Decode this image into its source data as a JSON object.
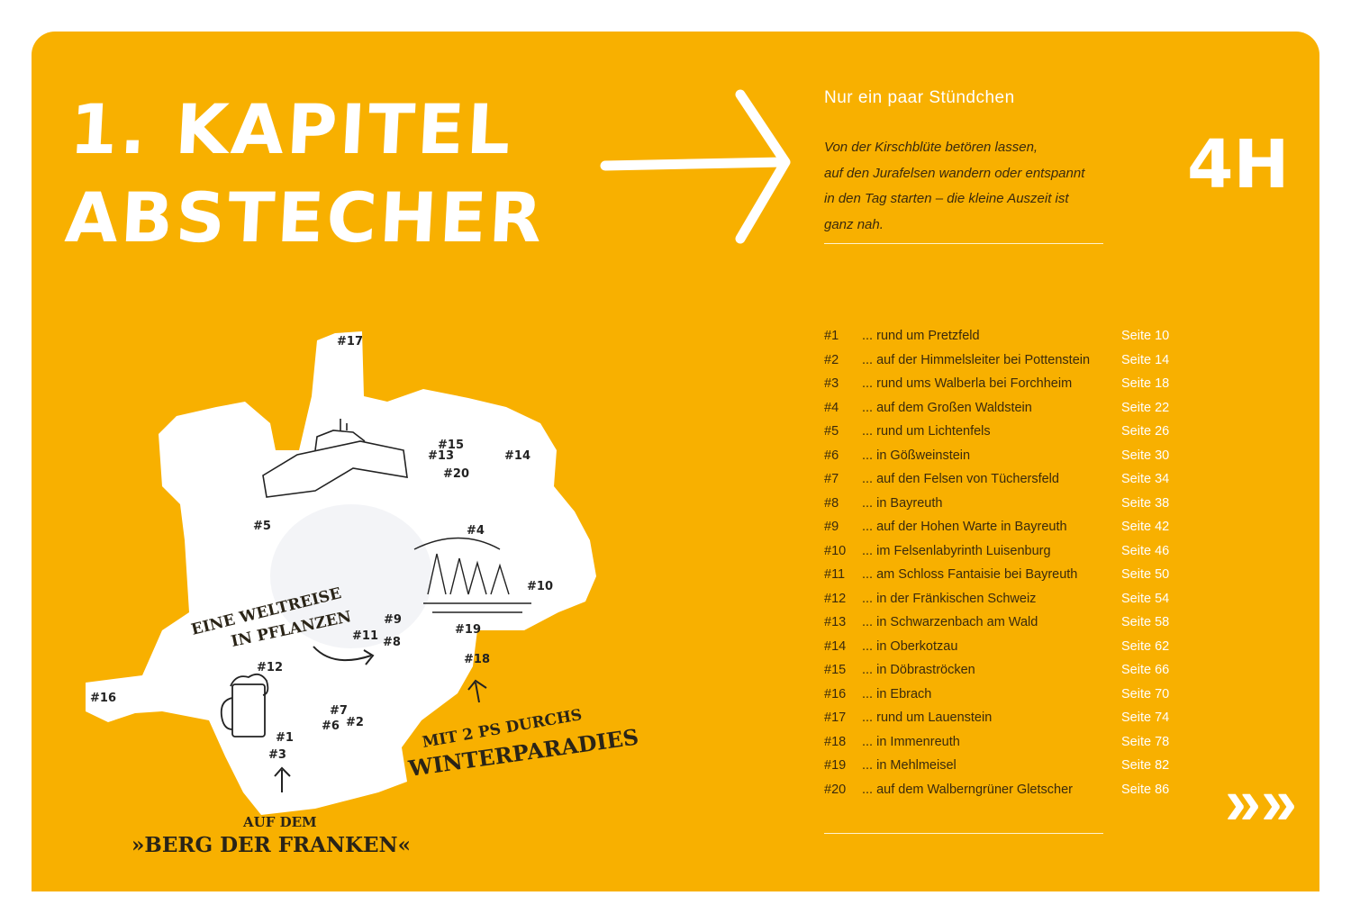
{
  "chapter": {
    "line1": "1. KAPITEL",
    "line2": "ABSTECHER"
  },
  "subheading": "Nur ein paar Stündchen",
  "intro": [
    "Von der Kirschblüte betören lassen,",
    "auf den Jurafelsen wandern oder entspannt",
    "in den Tag starten – die kleine Auszeit ist",
    "ganz nah."
  ],
  "duration": "4H",
  "colors": {
    "background": "#f8b000",
    "text": "#3b2a0c",
    "accent": "#ffffff"
  },
  "toc": [
    {
      "num": "#1",
      "title": "... rund um Pretzfeld",
      "page": "Seite 10"
    },
    {
      "num": "#2",
      "title": "... auf der Himmelsleiter bei Pottenstein",
      "page": "Seite 14"
    },
    {
      "num": "#3",
      "title": "... rund ums Walberla bei Forchheim",
      "page": "Seite 18"
    },
    {
      "num": "#4",
      "title": "... auf dem Großen Waldstein",
      "page": "Seite 22"
    },
    {
      "num": "#5",
      "title": "... rund um Lichtenfels",
      "page": "Seite 26"
    },
    {
      "num": "#6",
      "title": "... in Gößweinstein",
      "page": "Seite 30"
    },
    {
      "num": "#7",
      "title": "... auf den Felsen von Tüchersfeld",
      "page": "Seite 34"
    },
    {
      "num": "#8",
      "title": "... in Bayreuth",
      "page": "Seite 38"
    },
    {
      "num": "#9",
      "title": "... auf der Hohen Warte in Bayreuth",
      "page": "Seite 42"
    },
    {
      "num": "#10",
      "title": "... im Felsenlabyrinth Luisenburg",
      "page": "Seite 46"
    },
    {
      "num": "#11",
      "title": "... am Schloss Fantaisie bei Bayreuth",
      "page": "Seite 50"
    },
    {
      "num": "#12",
      "title": "... in der Fränkischen Schweiz",
      "page": "Seite 54"
    },
    {
      "num": "#13",
      "title": "... in Schwarzenbach am Wald",
      "page": "Seite 58"
    },
    {
      "num": "#14",
      "title": "... in Oberkotzau",
      "page": "Seite 62"
    },
    {
      "num": "#15",
      "title": "... in Döbraströcken",
      "page": "Seite 66"
    },
    {
      "num": "#16",
      "title": "... in Ebrach",
      "page": "Seite 70"
    },
    {
      "num": "#17",
      "title": "... rund um Lauenstein",
      "page": "Seite 74"
    },
    {
      "num": "#18",
      "title": "... in Immenreuth",
      "page": "Seite 78"
    },
    {
      "num": "#19",
      "title": "... in Mehlmeisel",
      "page": "Seite 82"
    },
    {
      "num": "#20",
      "title": "... auf dem Walberngrüner Gletscher",
      "page": "Seite 86"
    }
  ],
  "map": {
    "markers": [
      "#17",
      "#15",
      "#13",
      "#20",
      "#14",
      "#5",
      "#4",
      "#10",
      "#9",
      "#11",
      "#8",
      "#19",
      "#18",
      "#12",
      "#16",
      "#7",
      "#6",
      "#2",
      "#1",
      "#3"
    ],
    "captions": {
      "weltreise_1": "EINE WELTREISE",
      "weltreise_2": "IN PFLANZEN",
      "winter_1": "MIT 2 PS DURCHS",
      "winter_2": "WINTERPARADIES",
      "berg_1": "AUF DEM",
      "berg_2": "»BERG DER FRANKEN«"
    }
  },
  "next_icon": "double-chevron-right-icon",
  "next_symbol": "»"
}
